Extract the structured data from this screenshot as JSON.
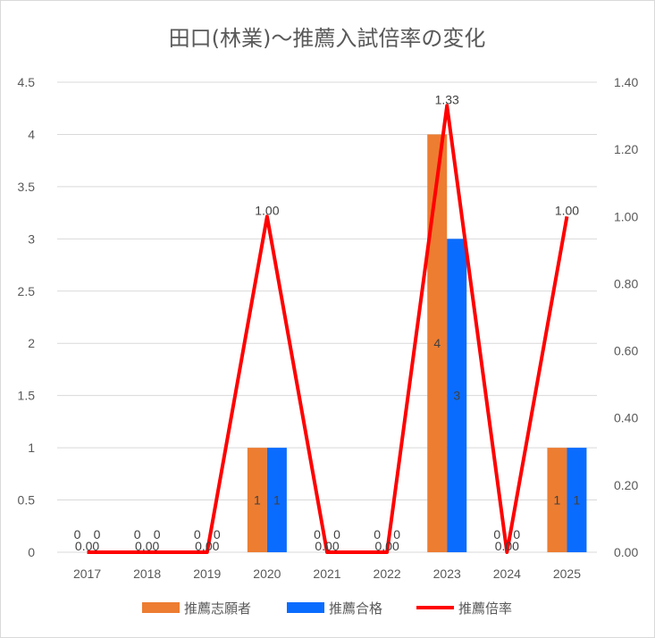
{
  "chart_data": {
    "type": "bar",
    "title": "田口(林業)〜推薦入試倍率の変化",
    "categories": [
      "2017",
      "2018",
      "2019",
      "2020",
      "2021",
      "2022",
      "2023",
      "2024",
      "2025"
    ],
    "series": [
      {
        "name": "推薦志願者",
        "kind": "bar",
        "axis": "left",
        "color": "#ED7D31",
        "values": [
          0,
          0,
          0,
          1,
          0,
          0,
          4,
          0,
          1
        ]
      },
      {
        "name": "推薦合格",
        "kind": "bar",
        "axis": "left",
        "color": "#0A6CFF",
        "values": [
          0,
          0,
          0,
          1,
          0,
          0,
          3,
          0,
          1
        ]
      },
      {
        "name": "推薦倍率",
        "kind": "line",
        "axis": "right",
        "color": "#FF0000",
        "values": [
          0.0,
          0.0,
          0.0,
          1.0,
          0.0,
          0.0,
          1.33,
          0.0,
          1.0
        ]
      }
    ],
    "y_left": {
      "min": 0,
      "max": 4.5,
      "ticks": [
        "0",
        "0.5",
        "1",
        "1.5",
        "2",
        "2.5",
        "3",
        "3.5",
        "4",
        "4.5"
      ]
    },
    "y_right": {
      "min": 0,
      "max": 1.4,
      "ticks": [
        "0.00",
        "0.20",
        "0.40",
        "0.60",
        "0.80",
        "1.00",
        "1.20",
        "1.40"
      ]
    },
    "grid": true,
    "legend_position": "bottom"
  }
}
